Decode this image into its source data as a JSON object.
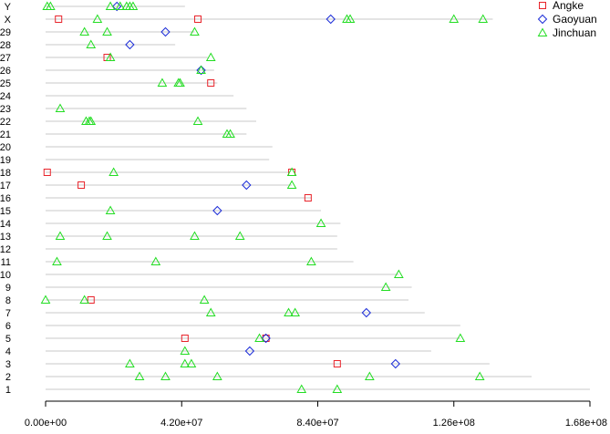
{
  "chart_data": {
    "type": "scatter",
    "title": "",
    "xlabel": "",
    "ylabel": "",
    "xlim": [
      0,
      168000000
    ],
    "x_ticks": [
      0,
      42000000,
      84000000,
      126000000,
      168000000
    ],
    "x_tick_labels": [
      "0.00e+00",
      "4.20e+07",
      "8.40e+07",
      "1.26e+08",
      "1.68e+08"
    ],
    "categories": [
      "1",
      "2",
      "3",
      "4",
      "5",
      "6",
      "7",
      "8",
      "9",
      "10",
      "11",
      "12",
      "13",
      "14",
      "15",
      "16",
      "17",
      "18",
      "19",
      "20",
      "21",
      "22",
      "23",
      "24",
      "25",
      "26",
      "27",
      "28",
      "29",
      "X",
      "Y"
    ],
    "chromosome_lengths": [
      168000000,
      150000000,
      137000000,
      119000000,
      128000000,
      128000000,
      117000000,
      112000000,
      113000000,
      109000000,
      95000000,
      90000000,
      90000000,
      91000000,
      85000000,
      82000000,
      76000000,
      75000000,
      69000000,
      70000000,
      62000000,
      65000000,
      62000000,
      58000000,
      53000000,
      52000000,
      50000000,
      40000000,
      46000000,
      138000000,
      43000000
    ],
    "legend_position": "top-right",
    "series": [
      {
        "name": "Angke",
        "marker": "square",
        "color": "#e8232a",
        "points": [
          {
            "chr": "X",
            "x": 4000000
          },
          {
            "chr": "X",
            "x": 47000000
          },
          {
            "chr": "27",
            "x": 19000000
          },
          {
            "chr": "25",
            "x": 51000000
          },
          {
            "chr": "18",
            "x": 500000
          },
          {
            "chr": "18",
            "x": 76000000
          },
          {
            "chr": "17",
            "x": 11000000
          },
          {
            "chr": "16",
            "x": 81000000
          },
          {
            "chr": "8",
            "x": 14000000
          },
          {
            "chr": "5",
            "x": 43000000
          },
          {
            "chr": "5",
            "x": 68000000
          },
          {
            "chr": "3",
            "x": 90000000
          }
        ]
      },
      {
        "name": "Gaoyuan",
        "marker": "diamond",
        "color": "#1c2dd8",
        "points": [
          {
            "chr": "Y",
            "x": 22000000
          },
          {
            "chr": "X",
            "x": 88000000
          },
          {
            "chr": "29",
            "x": 37000000
          },
          {
            "chr": "28",
            "x": 26000000
          },
          {
            "chr": "26",
            "x": 48000000
          },
          {
            "chr": "17",
            "x": 62000000
          },
          {
            "chr": "15",
            "x": 53000000
          },
          {
            "chr": "7",
            "x": 99000000
          },
          {
            "chr": "5",
            "x": 68000000
          },
          {
            "chr": "4",
            "x": 63000000
          },
          {
            "chr": "3",
            "x": 108000000
          }
        ]
      },
      {
        "name": "Jinchuan",
        "marker": "triangle",
        "color": "#22dd22",
        "points": [
          {
            "chr": "Y",
            "x": 500000
          },
          {
            "chr": "Y",
            "x": 1500000
          },
          {
            "chr": "Y",
            "x": 20000000
          },
          {
            "chr": "Y",
            "x": 23000000
          },
          {
            "chr": "Y",
            "x": 25000000
          },
          {
            "chr": "Y",
            "x": 26000000
          },
          {
            "chr": "Y",
            "x": 27000000
          },
          {
            "chr": "X",
            "x": 16000000
          },
          {
            "chr": "X",
            "x": 93000000
          },
          {
            "chr": "X",
            "x": 94000000
          },
          {
            "chr": "X",
            "x": 126000000
          },
          {
            "chr": "X",
            "x": 135000000
          },
          {
            "chr": "29",
            "x": 12000000
          },
          {
            "chr": "29",
            "x": 19000000
          },
          {
            "chr": "29",
            "x": 46000000
          },
          {
            "chr": "28",
            "x": 14000000
          },
          {
            "chr": "27",
            "x": 20000000
          },
          {
            "chr": "27",
            "x": 51000000
          },
          {
            "chr": "26",
            "x": 48000000
          },
          {
            "chr": "25",
            "x": 36000000
          },
          {
            "chr": "25",
            "x": 41000000
          },
          {
            "chr": "25",
            "x": 41500000
          },
          {
            "chr": "23",
            "x": 4500000
          },
          {
            "chr": "22",
            "x": 12500000
          },
          {
            "chr": "22",
            "x": 13500000
          },
          {
            "chr": "22",
            "x": 14000000
          },
          {
            "chr": "22",
            "x": 47000000
          },
          {
            "chr": "21",
            "x": 56000000
          },
          {
            "chr": "21",
            "x": 57000000
          },
          {
            "chr": "18",
            "x": 21000000
          },
          {
            "chr": "18",
            "x": 76000000
          },
          {
            "chr": "17",
            "x": 76000000
          },
          {
            "chr": "15",
            "x": 20000000
          },
          {
            "chr": "14",
            "x": 85000000
          },
          {
            "chr": "13",
            "x": 4500000
          },
          {
            "chr": "13",
            "x": 19000000
          },
          {
            "chr": "13",
            "x": 46000000
          },
          {
            "chr": "13",
            "x": 60000000
          },
          {
            "chr": "11",
            "x": 3500000
          },
          {
            "chr": "11",
            "x": 34000000
          },
          {
            "chr": "11",
            "x": 82000000
          },
          {
            "chr": "10",
            "x": 109000000
          },
          {
            "chr": "9",
            "x": 105000000
          },
          {
            "chr": "8",
            "x": 0
          },
          {
            "chr": "8",
            "x": 12000000
          },
          {
            "chr": "8",
            "x": 49000000
          },
          {
            "chr": "7",
            "x": 51000000
          },
          {
            "chr": "7",
            "x": 75000000
          },
          {
            "chr": "7",
            "x": 77000000
          },
          {
            "chr": "5",
            "x": 66000000
          },
          {
            "chr": "5",
            "x": 128000000
          },
          {
            "chr": "4",
            "x": 43000000
          },
          {
            "chr": "3",
            "x": 26000000
          },
          {
            "chr": "3",
            "x": 43000000
          },
          {
            "chr": "3",
            "x": 45000000
          },
          {
            "chr": "2",
            "x": 29000000
          },
          {
            "chr": "2",
            "x": 37000000
          },
          {
            "chr": "2",
            "x": 53000000
          },
          {
            "chr": "2",
            "x": 100000000
          },
          {
            "chr": "2",
            "x": 134000000
          },
          {
            "chr": "1",
            "x": 79000000
          },
          {
            "chr": "1",
            "x": 90000000
          }
        ]
      }
    ]
  }
}
